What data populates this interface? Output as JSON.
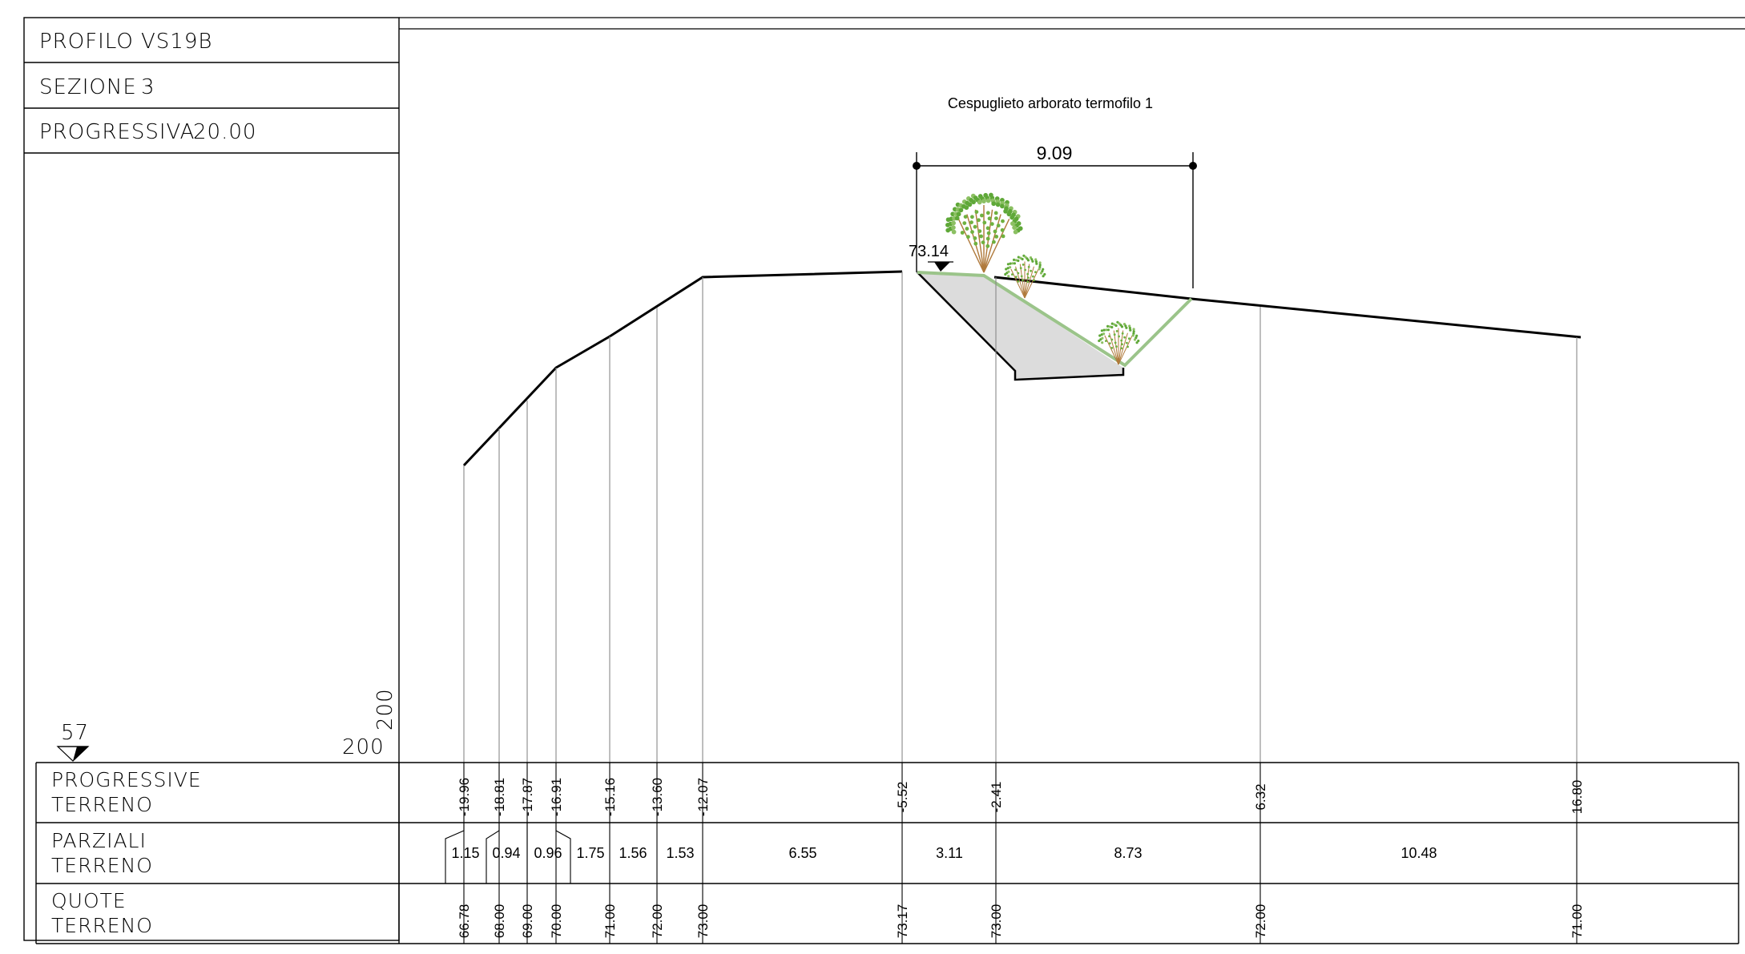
{
  "header": {
    "profilo_label": "PROFILO",
    "profilo_value": "VS19B",
    "sezione_label": "SEZIONE",
    "sezione_value": "3",
    "progressiva_label": "PROGRESSIVA",
    "progressiva_value": "20.00"
  },
  "scale": {
    "reference_elevation": "57",
    "horizontal": "200",
    "vertical": "200"
  },
  "vegetation_label": "Cespuglieto arborato termofilo 1",
  "width_dimension": "9.09",
  "top_elevation_marker": "73.14",
  "table_rows": {
    "progressive": [
      "PROGRESSIVE",
      "TERRENO"
    ],
    "parziali": [
      "PARZIALI",
      "TERRENO"
    ],
    "quote": [
      "QUOTE",
      "TERRENO"
    ]
  },
  "stations": [
    {
      "progressiva": "-19.96",
      "quota": "66.78"
    },
    {
      "progressiva": "-18.81",
      "quota": "68.00"
    },
    {
      "progressiva": "-17.87",
      "quota": "69.00"
    },
    {
      "progressiva": "-16.91",
      "quota": "70.00"
    },
    {
      "progressiva": "-15.16",
      "quota": "71.00"
    },
    {
      "progressiva": "-13.60",
      "quota": "72.00"
    },
    {
      "progressiva": "-12.07",
      "quota": "73.00"
    },
    {
      "progressiva": "-5.52",
      "quota": "73.17"
    },
    {
      "progressiva": "-2.41",
      "quota": "73.00"
    },
    {
      "progressiva": "6.32",
      "quota": "72.00"
    },
    {
      "progressiva": "16.80",
      "quota": "71.00"
    }
  ],
  "partials": [
    "1.15",
    "0.94",
    "0.96",
    "1.75",
    "1.56",
    "1.53",
    "6.55",
    "3.11",
    "8.73",
    "10.48"
  ],
  "colors": {
    "line": "#000000",
    "thin": "#888888",
    "fill": "#dcdcdc",
    "green": "#9bc48a",
    "foliage": "#6fb13f",
    "trunk": "#b07a3c"
  }
}
